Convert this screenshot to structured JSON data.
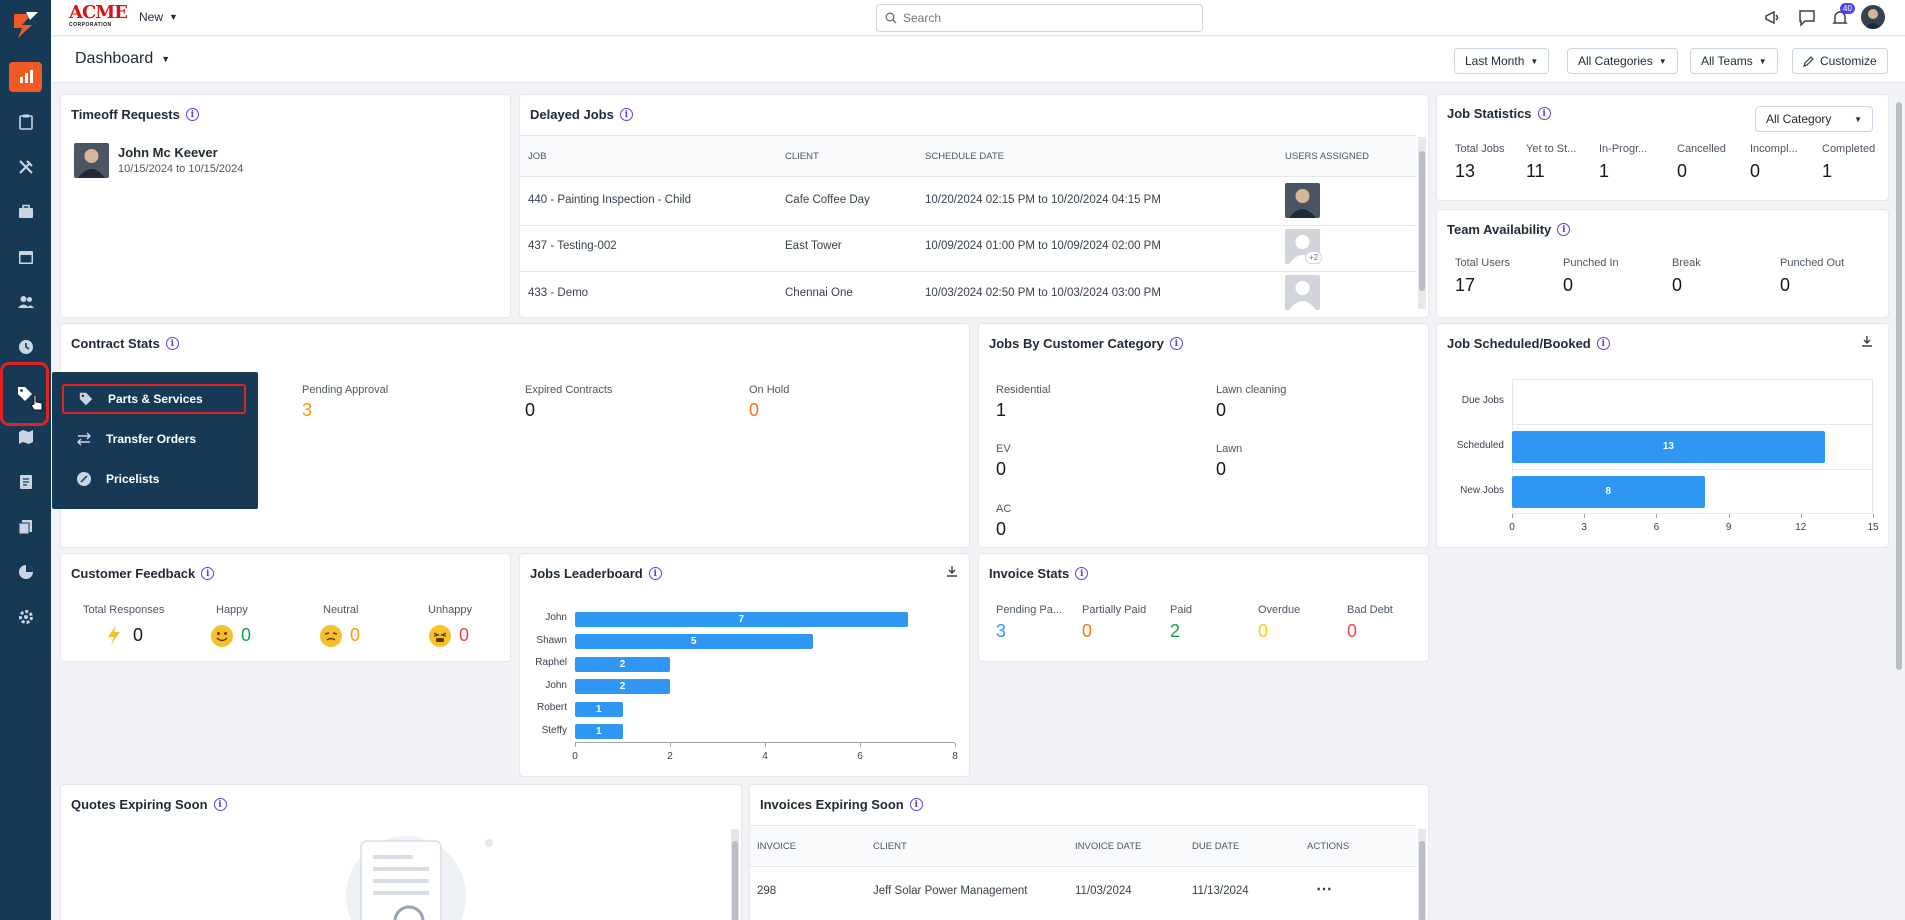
{
  "app": {
    "logo_text": "ACME",
    "logo_sub": "CORPORATION",
    "new_label": "New",
    "search_placeholder": "Search",
    "notif_count": "40"
  },
  "header": {
    "title": "Dashboard",
    "filters": {
      "period": "Last Month",
      "categories": "All Categories",
      "teams": "All Teams",
      "customize": "Customize"
    }
  },
  "flyout": {
    "items": [
      "Parts & Services",
      "Transfer Orders",
      "Pricelists"
    ]
  },
  "timeoff": {
    "title": "Timeoff Requests",
    "name": "John Mc Keever",
    "dates": "10/15/2024 to 10/15/2024"
  },
  "delayed": {
    "title": "Delayed Jobs",
    "headers": [
      "JOB",
      "CLIENT",
      "SCHEDULE DATE",
      "USERS ASSIGNED"
    ],
    "rows": [
      {
        "job": "440 - Painting Inspection - Child",
        "client": "Cafe Coffee Day",
        "date": "10/20/2024 02:15 PM to 10/20/2024 04:15 PM",
        "extra": ""
      },
      {
        "job": "437 - Testing-002",
        "client": "East Tower",
        "date": "10/09/2024 01:00 PM to 10/09/2024 02:00 PM",
        "extra": "+2"
      },
      {
        "job": "433 - Demo",
        "client": "Chennai One",
        "date": "10/03/2024 02:50 PM to 10/03/2024 03:00 PM",
        "extra": ""
      }
    ]
  },
  "job_stats": {
    "title": "Job Statistics",
    "filter": "All Category",
    "items": [
      {
        "label": "Total Jobs",
        "value": "13"
      },
      {
        "label": "Yet to St...",
        "value": "11"
      },
      {
        "label": "In-Progr...",
        "value": "1"
      },
      {
        "label": "Cancelled",
        "value": "0"
      },
      {
        "label": "Incompl...",
        "value": "0"
      },
      {
        "label": "Completed",
        "value": "1"
      }
    ]
  },
  "team": {
    "title": "Team Availability",
    "items": [
      {
        "label": "Total Users",
        "value": "17"
      },
      {
        "label": "Punched In",
        "value": "0"
      },
      {
        "label": "Break",
        "value": "0"
      },
      {
        "label": "Punched Out",
        "value": "0"
      }
    ]
  },
  "contract": {
    "title": "Contract Stats",
    "items": [
      {
        "label": "Pending Approval",
        "value": "3",
        "color": "#f59e0b"
      },
      {
        "label": "Expired Contracts",
        "value": "0",
        "color": "#111827"
      },
      {
        "label": "On Hold",
        "value": "0",
        "color": "#f97316"
      }
    ]
  },
  "category": {
    "title": "Jobs By Customer Category",
    "items": [
      {
        "label": "Residential",
        "value": "1"
      },
      {
        "label": "Lawn cleaning",
        "value": "0"
      },
      {
        "label": "EV",
        "value": "0"
      },
      {
        "label": "Lawn",
        "value": "0"
      },
      {
        "label": "AC",
        "value": "0"
      }
    ]
  },
  "feedback": {
    "title": "Customer Feedback",
    "items": [
      {
        "label": "Total Responses",
        "value": "0",
        "color": "#111827"
      },
      {
        "label": "Happy",
        "value": "0",
        "color": "#16a34a"
      },
      {
        "label": "Neutral",
        "value": "0",
        "color": "#f59e0b"
      },
      {
        "label": "Unhappy",
        "value": "0",
        "color": "#ef4444"
      }
    ]
  },
  "invoice_stats": {
    "title": "Invoice Stats",
    "items": [
      {
        "label": "Pending Pa...",
        "value": "3",
        "color": "#2f96f3"
      },
      {
        "label": "Partially Paid",
        "value": "0",
        "color": "#f97316"
      },
      {
        "label": "Paid",
        "value": "2",
        "color": "#16a34a"
      },
      {
        "label": "Overdue",
        "value": "0",
        "color": "#facc15"
      },
      {
        "label": "Bad Debt",
        "value": "0",
        "color": "#ef4444"
      }
    ]
  },
  "quotes": {
    "title": "Quotes Expiring Soon"
  },
  "invoices_exp": {
    "title": "Invoices Expiring Soon",
    "headers": [
      "INVOICE",
      "CLIENT",
      "INVOICE DATE",
      "DUE DATE",
      "ACTIONS"
    ],
    "rows": [
      {
        "invoice": "298",
        "client": "Jeff Solar Power Management",
        "invoice_date": "11/03/2024",
        "due_date": "11/13/2024"
      }
    ]
  },
  "chart_data": [
    {
      "type": "bar",
      "title": "Jobs Leaderboard",
      "orientation": "horizontal",
      "categories": [
        "John",
        "Shawn",
        "Raphel",
        "John",
        "Robert",
        "Steffy"
      ],
      "values": [
        7,
        5,
        2,
        2,
        1,
        1
      ],
      "xlim": [
        0,
        8
      ],
      "xticks": [
        0,
        2,
        4,
        6,
        8
      ],
      "color": "#2f96f3"
    },
    {
      "type": "bar",
      "title": "Job Scheduled/Booked",
      "orientation": "horizontal",
      "categories": [
        "Due Jobs",
        "Scheduled",
        "New Jobs"
      ],
      "values": [
        0,
        13,
        8
      ],
      "xlim": [
        0,
        15
      ],
      "xticks": [
        0,
        3,
        6,
        9,
        12,
        15
      ],
      "color": "#2f96f3"
    }
  ]
}
